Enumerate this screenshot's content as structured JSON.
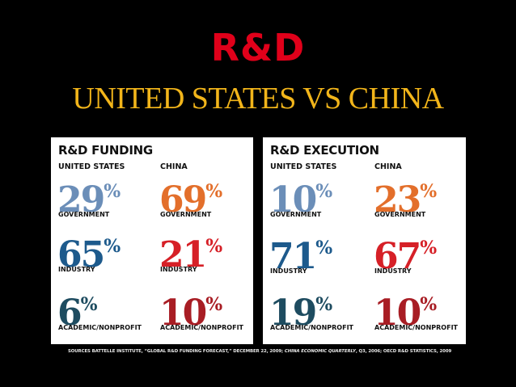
{
  "title": "R&D",
  "subtitle": "UNITED STATES VS CHINA",
  "panels": [
    {
      "title": "R&D FUNDING",
      "columns": [
        "UNITED STATES",
        "CHINA"
      ],
      "stats": [
        {
          "value": "29",
          "suffix": "%",
          "label": "GOVERNMENT",
          "color": "#6b8eb8"
        },
        {
          "value": "69",
          "suffix": "%",
          "label": "GOVERNMENT",
          "color": "#e36f2b"
        },
        {
          "value": "65",
          "suffix": "%",
          "label": "INDUSTRY",
          "color": "#1d5a8c"
        },
        {
          "value": "21",
          "suffix": "%",
          "label": "INDUSTRY",
          "color": "#d62027"
        },
        {
          "value": "6",
          "suffix": "%",
          "label": "ACADEMIC/NONPROFIT",
          "color": "#1e4c60"
        },
        {
          "value": "10",
          "suffix": "%",
          "label": "ACADEMIC/NONPROFIT",
          "color": "#a81d24"
        }
      ]
    },
    {
      "title": "R&D EXECUTION",
      "columns": [
        "UNITED STATES",
        "CHINA"
      ],
      "stats": [
        {
          "value": "10",
          "suffix": "%",
          "label": "GOVERNMENT",
          "color": "#6b8eb8"
        },
        {
          "value": "23",
          "suffix": "%",
          "label": "GOVERNMENT",
          "color": "#e36f2b"
        },
        {
          "value": "71",
          "suffix": "%",
          "label": "INDUSTRY",
          "color": "#1d5a8c"
        },
        {
          "value": "67",
          "suffix": "%",
          "label": "INDUSTRY",
          "color": "#d62027"
        },
        {
          "value": "19",
          "suffix": "%",
          "label": "ACADEMIC/NONPROFIT",
          "color": "#1e4c60"
        },
        {
          "value": "10",
          "suffix": "%",
          "label": "ACADEMIC/NONPROFIT",
          "color": "#a81d24"
        }
      ]
    }
  ],
  "sources_part1": "SOURCES BATTELLE INSTITUTE, “GLOBAL R&D FUNDING FORECAST,” DECEMBER 22, 2009; ",
  "sources_italic": "CHINA ECONOMIC QUARTERLY",
  "sources_part2": ", Q3, 2006; OECD R&D STATISTICS, 2009"
}
